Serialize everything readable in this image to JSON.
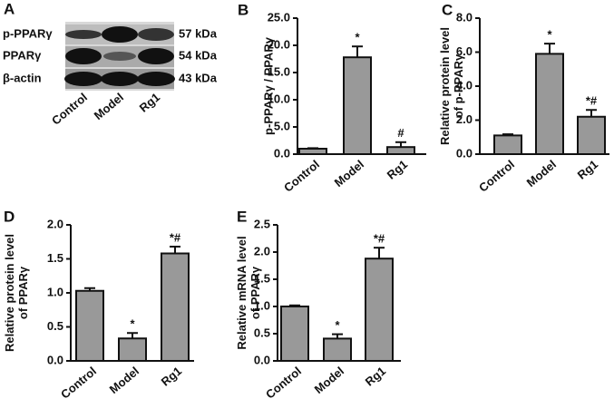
{
  "panel_a": {
    "label": "A",
    "rows": [
      {
        "name": "p-PPARγ",
        "size": "57 kDa"
      },
      {
        "name": "PPARγ",
        "size": "54 kDa"
      },
      {
        "name": "β-actin",
        "size": "43 kDa"
      }
    ],
    "lanes": [
      "Control",
      "Model",
      "Rg1"
    ]
  },
  "chart_data": [
    {
      "type": "bar",
      "panel": "B",
      "ylabel": [
        "p-PPARγ / PPARγ"
      ],
      "color": "#999999",
      "categories": [
        "Control",
        "Model",
        "Rg1"
      ],
      "values": [
        1.0,
        17.8,
        1.3
      ],
      "errors": [
        0.1,
        2.0,
        0.9
      ],
      "annotations": [
        null,
        "*",
        "#"
      ],
      "ylim": [
        0,
        25
      ],
      "yticks": [
        {
          "value": 0,
          "label": "0.0"
        },
        {
          "value": 5,
          "label": "5.0"
        },
        {
          "value": 10,
          "label": "10.0"
        },
        {
          "value": 15,
          "label": "15.0"
        },
        {
          "value": 20,
          "label": "20.0"
        },
        {
          "value": 25,
          "label": "25.0"
        }
      ]
    },
    {
      "type": "bar",
      "panel": "C",
      "ylabel": [
        "Relative protein level",
        "of p-PPARγ"
      ],
      "color": "#999999",
      "categories": [
        "Control",
        "Model",
        "Rg1"
      ],
      "values": [
        1.1,
        5.9,
        2.2
      ],
      "errors": [
        0.07,
        0.6,
        0.4
      ],
      "annotations": [
        null,
        "*",
        "*#"
      ],
      "ylim": [
        0,
        8
      ],
      "yticks": [
        {
          "value": 0,
          "label": "0.0"
        },
        {
          "value": 2,
          "label": "2.0"
        },
        {
          "value": 4,
          "label": "4.0"
        },
        {
          "value": 6,
          "label": "6.0"
        },
        {
          "value": 8,
          "label": "8.0"
        }
      ]
    },
    {
      "type": "bar",
      "panel": "D",
      "ylabel": [
        "Relative protein level",
        "of PPARγ"
      ],
      "color": "#999999",
      "categories": [
        "Control",
        "Model",
        "Rg1"
      ],
      "values": [
        1.03,
        0.33,
        1.58
      ],
      "errors": [
        0.04,
        0.08,
        0.1
      ],
      "annotations": [
        null,
        "*",
        "*#"
      ],
      "ylim": [
        0,
        2
      ],
      "yticks": [
        {
          "value": 0,
          "label": "0.0"
        },
        0.5,
        {
          "value": 1,
          "label": "1.0"
        },
        1.5,
        {
          "value": 2,
          "label": "2.0"
        }
      ]
    },
    {
      "type": "bar",
      "panel": "E",
      "ylabel": [
        "Relative mRNA level",
        "of PPARγ"
      ],
      "color": "#999999",
      "categories": [
        "Control",
        "Model",
        "Rg1"
      ],
      "values": [
        1.0,
        0.41,
        1.88
      ],
      "errors": [
        0.02,
        0.08,
        0.2
      ],
      "annotations": [
        null,
        "*",
        "*#"
      ],
      "ylim": [
        0,
        2.5
      ],
      "yticks": [
        {
          "value": 0,
          "label": "0.0"
        },
        0.5,
        {
          "value": 1,
          "label": "1.0"
        },
        1.5,
        {
          "value": 2,
          "label": "2.0"
        },
        2.5
      ]
    }
  ]
}
